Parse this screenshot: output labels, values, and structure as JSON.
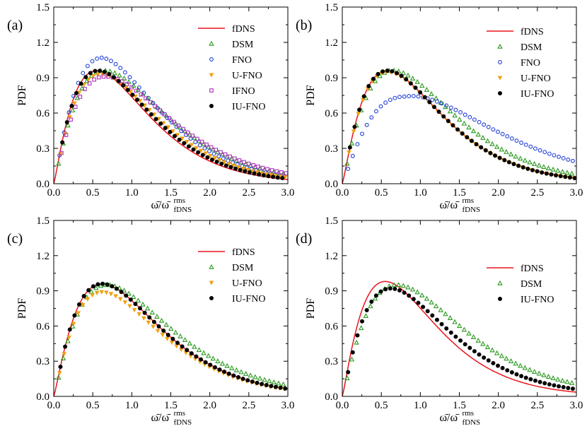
{
  "chart_data": [
    {
      "type": "line",
      "panel_label": "(a)",
      "ylabel": "PDF",
      "xlabel": "ω̄/ω̄",
      "xlabel_sup": "rms",
      "xlabel_sub": "fDNS",
      "xlim": [
        0,
        3
      ],
      "ylim": [
        0,
        1.5
      ],
      "xticks": [
        "0.0",
        "0.5",
        "1.0",
        "1.5",
        "2.0",
        "2.5",
        "3.0"
      ],
      "yticks": [
        "0.0",
        "0.3",
        "0.6",
        "0.9",
        "1.2",
        "1.5"
      ],
      "legend": [
        "fDNS",
        "DSM",
        "FNO",
        "U-FNO",
        "IFNO",
        "IU-FNO"
      ],
      "series": [
        {
          "name": "fDNS",
          "peak_x": 0.55,
          "peak_y": 0.96,
          "marker": "line",
          "color": "#e8141b"
        },
        {
          "name": "DSM",
          "peak_x": 0.65,
          "peak_y": 0.96,
          "marker": "triangle-up",
          "color": "#2a9a1f"
        },
        {
          "name": "FNO",
          "peak_x": 0.62,
          "peak_y": 1.07,
          "marker": "circle-open",
          "color": "#1f3fd6"
        },
        {
          "name": "U-FNO",
          "peak_x": 0.6,
          "peak_y": 0.93,
          "marker": "triangle-down",
          "color": "#f0a010"
        },
        {
          "name": "IFNO",
          "peak_x": 0.65,
          "peak_y": 0.91,
          "marker": "square-open",
          "color": "#b030c0"
        },
        {
          "name": "IU-FNO",
          "peak_x": 0.57,
          "peak_y": 0.96,
          "marker": "circle-filled",
          "color": "#000000"
        }
      ]
    },
    {
      "type": "line",
      "panel_label": "(b)",
      "ylabel": "PDF",
      "xlabel": "ω̄/ω̄",
      "xlabel_sup": "rms",
      "xlabel_sub": "fDNS",
      "xlim": [
        0,
        3
      ],
      "ylim": [
        0,
        1.5
      ],
      "xticks": [
        "0.0",
        "0.5",
        "1.0",
        "1.5",
        "2.0",
        "2.5",
        "3.0"
      ],
      "yticks": [
        "0.0",
        "0.3",
        "0.6",
        "0.9",
        "1.2",
        "1.5"
      ],
      "legend": [
        "fDNS",
        "DSM",
        "FNO",
        "U-FNO",
        "IU-FNO"
      ],
      "series": [
        {
          "name": "fDNS",
          "peak_x": 0.58,
          "peak_y": 0.96,
          "marker": "line",
          "color": "#e8141b"
        },
        {
          "name": "DSM",
          "peak_x": 0.65,
          "peak_y": 0.96,
          "marker": "triangle-up",
          "color": "#2a9a1f"
        },
        {
          "name": "FNO",
          "peak_x": 0.8,
          "peak_y": 0.74,
          "marker": "circle-open",
          "color": "#1f3fd6"
        },
        {
          "name": "U-FNO",
          "peak_x": 0.58,
          "peak_y": 0.95,
          "marker": "triangle-down",
          "color": "#f0a010"
        },
        {
          "name": "IU-FNO",
          "peak_x": 0.58,
          "peak_y": 0.96,
          "marker": "circle-filled",
          "color": "#000000"
        }
      ]
    },
    {
      "type": "line",
      "panel_label": "(c)",
      "ylabel": "PDF",
      "xlabel": "ω̄/ω̄",
      "xlabel_sup": "rms",
      "xlabel_sub": "fDNS",
      "xlim": [
        0,
        3
      ],
      "ylim": [
        0,
        1.5
      ],
      "xticks": [
        "0.0",
        "0.5",
        "1.0",
        "1.5",
        "2.0",
        "2.5",
        "3.0"
      ],
      "yticks": [
        "0.0",
        "0.3",
        "0.6",
        "0.9",
        "1.2",
        "1.5"
      ],
      "legend": [
        "fDNS",
        "DSM",
        "U-FNO",
        "IU-FNO"
      ],
      "series": [
        {
          "name": "fDNS",
          "peak_x": 0.62,
          "peak_y": 0.96,
          "marker": "line",
          "color": "#e8141b"
        },
        {
          "name": "DSM",
          "peak_x": 0.68,
          "peak_y": 0.95,
          "marker": "triangle-up",
          "color": "#2a9a1f"
        },
        {
          "name": "U-FNO",
          "peak_x": 0.62,
          "peak_y": 0.89,
          "marker": "triangle-down",
          "color": "#f0a010"
        },
        {
          "name": "IU-FNO",
          "peak_x": 0.62,
          "peak_y": 0.96,
          "marker": "circle-filled",
          "color": "#000000"
        }
      ]
    },
    {
      "type": "line",
      "panel_label": "(d)",
      "ylabel": "PDF",
      "xlabel": "ω̄/ω̄",
      "xlabel_sup": "rms",
      "xlabel_sub": "fDNS",
      "xlim": [
        0,
        3
      ],
      "ylim": [
        0,
        1.5
      ],
      "xticks": [
        "0.0",
        "0.5",
        "1.0",
        "1.5",
        "2.0",
        "2.5",
        "3.0"
      ],
      "yticks": [
        "0.0",
        "0.3",
        "0.6",
        "0.9",
        "1.2",
        "1.5"
      ],
      "legend": [
        "fDNS",
        "DSM",
        "IU-FNO"
      ],
      "series": [
        {
          "name": "fDNS",
          "peak_x": 0.55,
          "peak_y": 0.98,
          "marker": "line",
          "color": "#e8141b"
        },
        {
          "name": "DSM",
          "peak_x": 0.7,
          "peak_y": 0.95,
          "marker": "triangle-up",
          "color": "#2a9a1f"
        },
        {
          "name": "IU-FNO",
          "peak_x": 0.62,
          "peak_y": 0.92,
          "marker": "circle-filled",
          "color": "#000000"
        }
      ]
    }
  ]
}
